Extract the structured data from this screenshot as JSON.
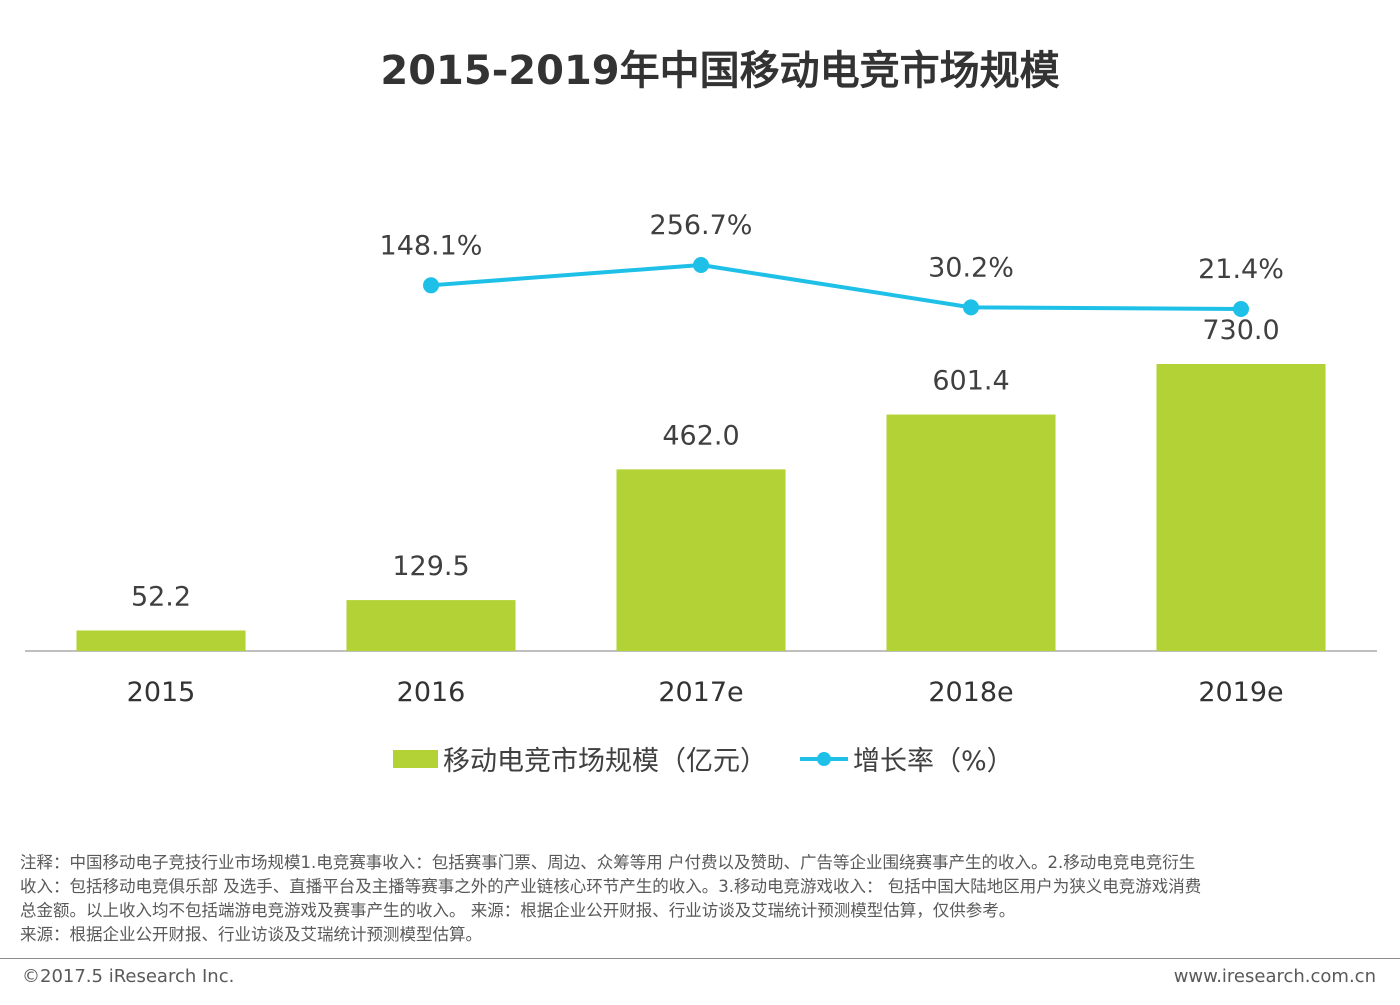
{
  "title": "2015-2019年中国移动电竞市场规模",
  "chart_data": {
    "type": "bar",
    "categories": [
      "2015",
      "2016",
      "2017e",
      "2018e",
      "2019e"
    ],
    "series": [
      {
        "name": "移动电竞市场规模（亿元）",
        "kind": "bar",
        "color": "#b2d235",
        "values": [
          52.2,
          129.5,
          462.0,
          601.4,
          730.0
        ],
        "labels": [
          "52.2",
          "129.5",
          "462.0",
          "601.4",
          "730.0"
        ]
      },
      {
        "name": "增长率（%）",
        "kind": "line",
        "color": "#1ec0e8",
        "values": [
          null,
          148.1,
          256.7,
          30.2,
          21.4
        ],
        "labels": [
          "",
          "148.1%",
          "256.7%",
          "30.2%",
          "21.4%"
        ]
      }
    ],
    "xlabel": "",
    "ylabel": "",
    "ylim": [
      0,
      730
    ],
    "legend_position": "bottom"
  },
  "footnote": {
    "lines": [
      "注释：中国移动电子竞技行业市场规模1.电竞赛事收入：包括赛事门票、周边、众筹等用 户付费以及赞助、广告等企业围绕赛事产生的收入。2.移动电竞电竞衍生",
      "收入：包括移动电竞俱乐部 及选手、直播平台及主播等赛事之外的产业链核心环节产生的收入。3.移动电竞游戏收入： 包括中国大陆地区用户为狭义电竞游戏消费",
      "总金额。以上收入均不包括端游电竞游戏及赛事产生的收入。 来源：根据企业公开财报、行业访谈及艾瑞统计预测模型估算，仅供参考。",
      "来源：根据企业公开财报、行业访谈及艾瑞统计预测模型估算。"
    ]
  },
  "footer": {
    "copyright": "©2017.5 iResearch Inc.",
    "website": "www.iresearch.com.cn"
  }
}
